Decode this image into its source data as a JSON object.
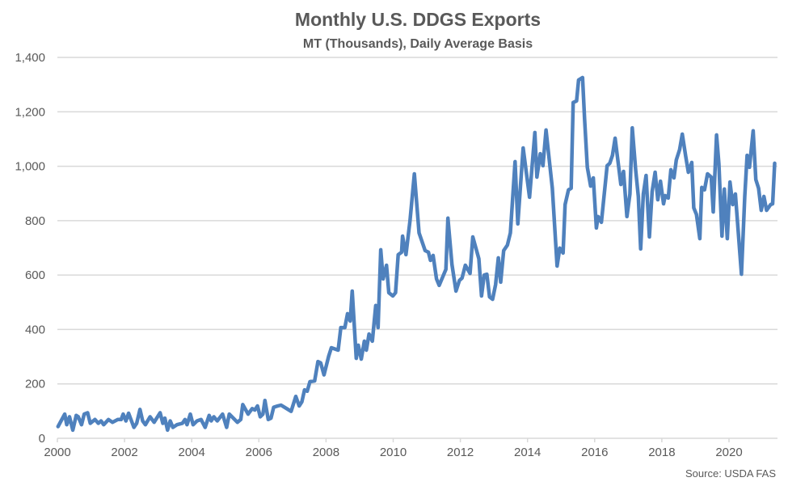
{
  "chart_data": {
    "type": "line",
    "title": "Monthly U.S. DDGS Exports",
    "subtitle": "MT (Thousands), Daily Average Basis",
    "source": "Source: USDA FAS",
    "xlabel": "",
    "ylabel": "",
    "xlim": [
      2000,
      2021.4
    ],
    "ylim": [
      0,
      1400
    ],
    "grid": true,
    "line_color": "#4f81bd",
    "x_ticks": [
      "2000",
      "2002",
      "2004",
      "2006",
      "2008",
      "2010",
      "2012",
      "2014",
      "2016",
      "2018",
      "2020"
    ],
    "y_ticks": [
      "0",
      "200",
      "400",
      "600",
      "800",
      "1,000",
      "1,200",
      "1,400"
    ],
    "series": [
      {
        "name": "Monthly U.S. DDGS Exports",
        "points": [
          [
            2000.02,
            43
          ],
          [
            2000.22,
            89
          ],
          [
            2000.28,
            50
          ],
          [
            2000.36,
            79
          ],
          [
            2000.46,
            30
          ],
          [
            2000.56,
            84
          ],
          [
            2000.62,
            79
          ],
          [
            2000.72,
            50
          ],
          [
            2000.8,
            89
          ],
          [
            2000.9,
            94
          ],
          [
            2000.98,
            55
          ],
          [
            2001.12,
            69
          ],
          [
            2001.22,
            55
          ],
          [
            2001.3,
            64
          ],
          [
            2001.38,
            50
          ],
          [
            2001.52,
            69
          ],
          [
            2001.64,
            59
          ],
          [
            2001.8,
            69
          ],
          [
            2001.9,
            69
          ],
          [
            2001.96,
            89
          ],
          [
            2002.04,
            64
          ],
          [
            2002.12,
            92
          ],
          [
            2002.28,
            40
          ],
          [
            2002.36,
            55
          ],
          [
            2002.46,
            106
          ],
          [
            2002.54,
            64
          ],
          [
            2002.62,
            50
          ],
          [
            2002.76,
            79
          ],
          [
            2002.88,
            59
          ],
          [
            2003.06,
            94
          ],
          [
            2003.14,
            55
          ],
          [
            2003.2,
            74
          ],
          [
            2003.28,
            30
          ],
          [
            2003.36,
            64
          ],
          [
            2003.44,
            40
          ],
          [
            2003.56,
            50
          ],
          [
            2003.72,
            55
          ],
          [
            2003.8,
            69
          ],
          [
            2003.86,
            50
          ],
          [
            2003.96,
            89
          ],
          [
            2004.04,
            50
          ],
          [
            2004.16,
            64
          ],
          [
            2004.28,
            69
          ],
          [
            2004.4,
            40
          ],
          [
            2004.52,
            84
          ],
          [
            2004.58,
            64
          ],
          [
            2004.66,
            79
          ],
          [
            2004.76,
            64
          ],
          [
            2004.92,
            89
          ],
          [
            2005.04,
            40
          ],
          [
            2005.12,
            89
          ],
          [
            2005.24,
            74
          ],
          [
            2005.36,
            59
          ],
          [
            2005.46,
            69
          ],
          [
            2005.52,
            124
          ],
          [
            2005.68,
            89
          ],
          [
            2005.8,
            109
          ],
          [
            2005.88,
            104
          ],
          [
            2005.96,
            119
          ],
          [
            2006.04,
            79
          ],
          [
            2006.12,
            89
          ],
          [
            2006.18,
            139
          ],
          [
            2006.28,
            69
          ],
          [
            2006.36,
            74
          ],
          [
            2006.44,
            114
          ],
          [
            2006.56,
            119
          ],
          [
            2006.66,
            122
          ],
          [
            2006.76,
            114
          ],
          [
            2006.96,
            99
          ],
          [
            2007.1,
            154
          ],
          [
            2007.2,
            119
          ],
          [
            2007.28,
            134
          ],
          [
            2007.36,
            178
          ],
          [
            2007.44,
            173
          ],
          [
            2007.52,
            208
          ],
          [
            2007.66,
            211
          ],
          [
            2007.76,
            282
          ],
          [
            2007.84,
            277
          ],
          [
            2007.94,
            233
          ],
          [
            2008.08,
            302
          ],
          [
            2008.16,
            333
          ],
          [
            2008.36,
            324
          ],
          [
            2008.44,
            407
          ],
          [
            2008.56,
            407
          ],
          [
            2008.64,
            458
          ],
          [
            2008.72,
            431
          ],
          [
            2008.78,
            541
          ],
          [
            2008.9,
            294
          ],
          [
            2008.96,
            342
          ],
          [
            2009.05,
            291
          ],
          [
            2009.14,
            357
          ],
          [
            2009.2,
            324
          ],
          [
            2009.28,
            383
          ],
          [
            2009.38,
            357
          ],
          [
            2009.48,
            488
          ],
          [
            2009.55,
            407
          ],
          [
            2009.63,
            693
          ],
          [
            2009.7,
            586
          ],
          [
            2009.8,
            636
          ],
          [
            2009.87,
            535
          ],
          [
            2009.99,
            523
          ],
          [
            2010.07,
            535
          ],
          [
            2010.15,
            675
          ],
          [
            2010.25,
            684
          ],
          [
            2010.28,
            743
          ],
          [
            2010.38,
            675
          ],
          [
            2010.5,
            800
          ],
          [
            2010.63,
            972
          ],
          [
            2010.77,
            755
          ],
          [
            2010.95,
            690
          ],
          [
            2011.05,
            684
          ],
          [
            2011.11,
            654
          ],
          [
            2011.19,
            672
          ],
          [
            2011.29,
            586
          ],
          [
            2011.37,
            562
          ],
          [
            2011.57,
            621
          ],
          [
            2011.63,
            809
          ],
          [
            2011.75,
            639
          ],
          [
            2011.87,
            541
          ],
          [
            2011.97,
            580
          ],
          [
            2012.05,
            589
          ],
          [
            2012.15,
            636
          ],
          [
            2012.29,
            606
          ],
          [
            2012.37,
            740
          ],
          [
            2012.55,
            660
          ],
          [
            2012.63,
            523
          ],
          [
            2012.71,
            600
          ],
          [
            2012.79,
            603
          ],
          [
            2012.87,
            520
          ],
          [
            2012.96,
            511
          ],
          [
            2013.05,
            565
          ],
          [
            2013.13,
            663
          ],
          [
            2013.2,
            574
          ],
          [
            2013.29,
            690
          ],
          [
            2013.4,
            710
          ],
          [
            2013.49,
            755
          ],
          [
            2013.63,
            1017
          ],
          [
            2013.71,
            788
          ],
          [
            2013.87,
            1067
          ],
          [
            2014.06,
            886
          ],
          [
            2014.22,
            1124
          ],
          [
            2014.28,
            960
          ],
          [
            2014.38,
            1046
          ],
          [
            2014.46,
            1002
          ],
          [
            2014.55,
            1133
          ],
          [
            2014.74,
            919
          ],
          [
            2014.88,
            633
          ],
          [
            2014.96,
            699
          ],
          [
            2015.06,
            681
          ],
          [
            2015.12,
            859
          ],
          [
            2015.22,
            913
          ],
          [
            2015.3,
            919
          ],
          [
            2015.36,
            1234
          ],
          [
            2015.46,
            1240
          ],
          [
            2015.52,
            1317
          ],
          [
            2015.64,
            1326
          ],
          [
            2015.7,
            1174
          ],
          [
            2015.78,
            996
          ],
          [
            2015.88,
            927
          ],
          [
            2015.96,
            957
          ],
          [
            2016.05,
            773
          ],
          [
            2016.1,
            815
          ],
          [
            2016.2,
            794
          ],
          [
            2016.37,
            1002
          ],
          [
            2016.45,
            1011
          ],
          [
            2016.53,
            1040
          ],
          [
            2016.61,
            1103
          ],
          [
            2016.78,
            933
          ],
          [
            2016.86,
            981
          ],
          [
            2016.96,
            815
          ],
          [
            2017.05,
            898
          ],
          [
            2017.12,
            1141
          ],
          [
            2017.22,
            987
          ],
          [
            2017.3,
            889
          ],
          [
            2017.37,
            696
          ],
          [
            2017.45,
            898
          ],
          [
            2017.53,
            966
          ],
          [
            2017.63,
            740
          ],
          [
            2017.71,
            907
          ],
          [
            2017.8,
            978
          ],
          [
            2017.88,
            877
          ],
          [
            2017.96,
            945
          ],
          [
            2018.05,
            862
          ],
          [
            2018.1,
            892
          ],
          [
            2018.19,
            883
          ],
          [
            2018.27,
            987
          ],
          [
            2018.36,
            957
          ],
          [
            2018.43,
            1023
          ],
          [
            2018.53,
            1061
          ],
          [
            2018.61,
            1118
          ],
          [
            2018.71,
            1037
          ],
          [
            2018.79,
            978
          ],
          [
            2018.89,
            1014
          ],
          [
            2018.95,
            847
          ],
          [
            2019.03,
            823
          ],
          [
            2019.13,
            734
          ],
          [
            2019.19,
            922
          ],
          [
            2019.27,
            913
          ],
          [
            2019.36,
            972
          ],
          [
            2019.47,
            960
          ],
          [
            2019.53,
            832
          ],
          [
            2019.63,
            1115
          ],
          [
            2019.7,
            1008
          ],
          [
            2019.79,
            743
          ],
          [
            2019.86,
            916
          ],
          [
            2019.95,
            734
          ],
          [
            2020.03,
            942
          ],
          [
            2020.11,
            859
          ],
          [
            2020.19,
            898
          ],
          [
            2020.37,
            603
          ],
          [
            2020.47,
            889
          ],
          [
            2020.54,
            1040
          ],
          [
            2020.61,
            996
          ],
          [
            2020.72,
            1130
          ],
          [
            2020.8,
            951
          ],
          [
            2020.88,
            919
          ],
          [
            2020.96,
            838
          ],
          [
            2021.04,
            889
          ],
          [
            2021.12,
            838
          ],
          [
            2021.24,
            859
          ],
          [
            2021.3,
            862
          ],
          [
            2021.36,
            1011
          ]
        ]
      }
    ]
  }
}
